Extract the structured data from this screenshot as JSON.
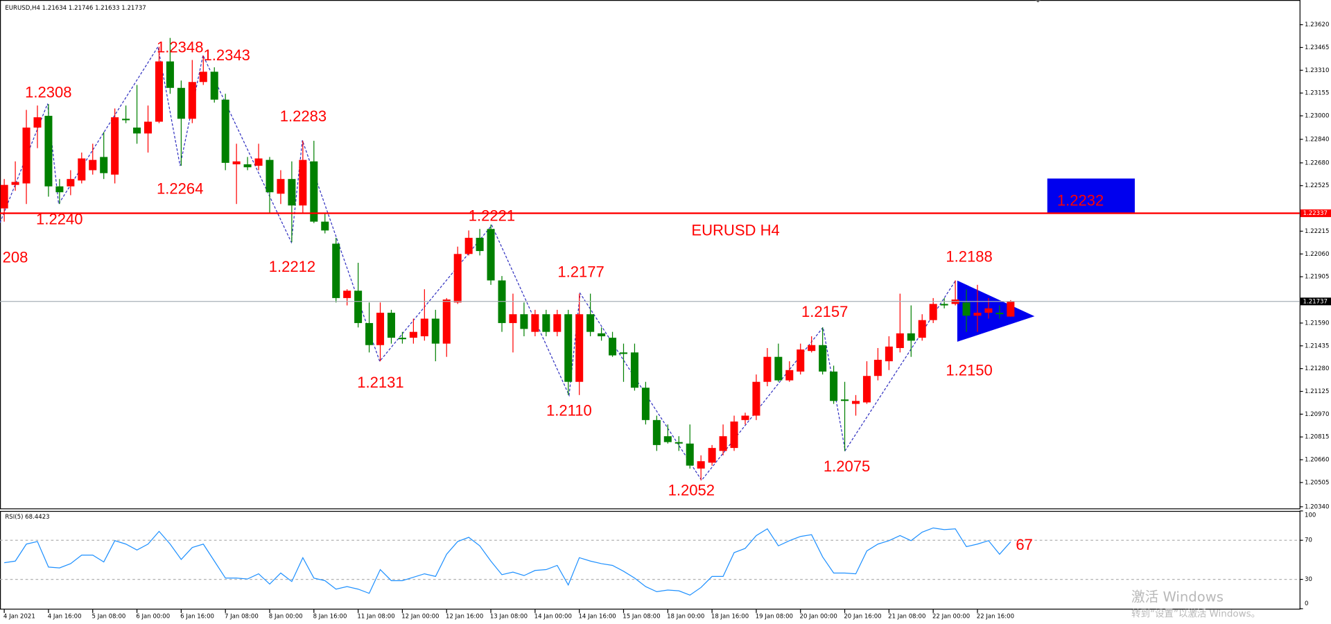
{
  "header": {
    "symbol": "EURUSD,H4",
    "open": 1.21634,
    "high": 1.21746,
    "low": 1.21633,
    "close": 1.21737
  },
  "watermark": {
    "line1": "激活 Windows",
    "line2": "转到“设置”以激活 Windows。"
  },
  "chart_data": [
    {
      "type": "candlestick",
      "up_color": "#ff0000",
      "down_color": "#008000",
      "grid": false,
      "ylim": [
        1.20329,
        1.23788
      ],
      "yticks": [
        {
          "value": 1.2362,
          "label": "1.23620"
        },
        {
          "value": 1.23465,
          "label": "1.23465"
        },
        {
          "value": 1.2331,
          "label": "1.23310"
        },
        {
          "value": 1.23155,
          "label": "1.23155"
        },
        {
          "value": 1.23,
          "label": "1.23000"
        },
        {
          "value": 1.2284,
          "label": "1.22840"
        },
        {
          "value": 1.2268,
          "label": "1.22680"
        },
        {
          "value": 1.22525,
          "label": "1.22525"
        },
        {
          "value": 1.22215,
          "label": "1.22215"
        },
        {
          "value": 1.2206,
          "label": "1.22060"
        },
        {
          "value": 1.21905,
          "label": "1.21905"
        },
        {
          "value": 1.2159,
          "label": "1.21590"
        },
        {
          "value": 1.21435,
          "label": "1.21435"
        },
        {
          "value": 1.2128,
          "label": "1.21280"
        },
        {
          "value": 1.21125,
          "label": "1.21125"
        },
        {
          "value": 1.2097,
          "label": "1.20970"
        },
        {
          "value": 1.20815,
          "label": "1.20815"
        },
        {
          "value": 1.2066,
          "label": "1.20660"
        },
        {
          "value": 1.20505,
          "label": "1.20505"
        },
        {
          "value": 1.2034,
          "label": "1.20340"
        }
      ],
      "hlines": [
        {
          "value": 1.22337,
          "color": "#ff0000",
          "label_color": "#ff0000"
        },
        {
          "value": 1.21737,
          "color": "#a8b0b8",
          "label_color": "#000000"
        }
      ],
      "annotations": [
        {
          "text": "1.2348"
        },
        {
          "text": "1.2343"
        },
        {
          "text": "1.2308"
        },
        {
          "text": "1.2283"
        },
        {
          "text": "1.2264"
        },
        {
          "text": "1.2240"
        },
        {
          "text": "208"
        },
        {
          "text": "1.2212"
        },
        {
          "text": "1.2221"
        },
        {
          "text": "1.2177"
        },
        {
          "text": "1.2131"
        },
        {
          "text": "1.2110"
        },
        {
          "text": "1.2157"
        },
        {
          "text": "1.2188"
        },
        {
          "text": "1.2150"
        },
        {
          "text": "1.2075"
        },
        {
          "text": "1.2052"
        },
        {
          "text": "EURUSD H4"
        },
        {
          "text": "1.2232"
        }
      ],
      "categories": [
        "4 Jan 2021",
        null,
        null,
        null,
        "4 Jan 16:00",
        null,
        null,
        null,
        "5 Jan 08:00",
        null,
        null,
        null,
        "6 Jan 00:00",
        null,
        null,
        null,
        "6 Jan 16:00",
        null,
        null,
        null,
        "7 Jan 08:00",
        null,
        null,
        null,
        "8 Jan 00:00",
        null,
        null,
        null,
        "8 Jan 16:00",
        null,
        null,
        null,
        "11 Jan 08:00",
        null,
        null,
        null,
        "12 Jan 00:00",
        null,
        null,
        null,
        "12 Jan 16:00",
        null,
        null,
        null,
        "13 Jan 08:00",
        null,
        null,
        null,
        "14 Jan 00:00",
        null,
        null,
        null,
        "14 Jan 16:00",
        null,
        null,
        null,
        "15 Jan 08:00",
        null,
        null,
        null,
        "18 Jan 00:00",
        null,
        null,
        null,
        "18 Jan 16:00",
        null,
        null,
        null,
        "19 Jan 08:00",
        null,
        null,
        null,
        "20 Jan 00:00",
        null,
        null,
        null,
        "20 Jan 16:00",
        null,
        null,
        null,
        "21 Jan 08:00",
        null,
        null,
        null,
        "22 Jan 00:00",
        null,
        null,
        null,
        "22 Jan 16:00",
        null,
        null,
        null
      ],
      "open": [
        1.2237,
        1.2253,
        1.2254,
        1.2292,
        1.23,
        1.2252,
        1.2252,
        1.2256,
        1.2263,
        1.2272,
        1.226,
        1.2298,
        1.2292,
        1.2288,
        1.2296,
        1.2337,
        1.2319,
        1.2298,
        1.2323,
        1.233,
        1.2311,
        1.2267,
        1.2267,
        1.2266,
        1.227,
        1.2247,
        1.2257,
        1.2239,
        1.2269,
        1.2228,
        1.2213,
        1.2176,
        1.2181,
        1.2159,
        1.2144,
        1.2166,
        1.2149,
        1.2149,
        1.215,
        1.2162,
        1.2145,
        1.2173,
        1.2206,
        1.2217,
        1.2223,
        1.2188,
        1.2159,
        1.2165,
        1.2153,
        1.2165,
        1.2153,
        1.2165,
        1.2119,
        1.2165,
        1.2152,
        1.2149,
        1.2139,
        1.2139,
        1.2115,
        1.2093,
        1.2082,
        1.2078,
        1.2077,
        1.206,
        1.2064,
        1.2072,
        1.2074,
        1.2093,
        1.2096,
        1.2119,
        1.2136,
        1.212,
        1.2126,
        1.214,
        1.2144,
        1.2126,
        1.2107,
        1.2104,
        1.2105,
        1.2123,
        1.2133,
        1.2142,
        1.2152,
        1.2149,
        1.2161,
        1.2172,
        1.2172,
        1.2173,
        1.2164,
        1.2166,
        1.2166,
        1.21634
      ],
      "high": [
        1.2257,
        1.2269,
        1.2304,
        1.2307,
        1.2308,
        1.2257,
        1.2263,
        1.2275,
        1.2281,
        1.2289,
        1.2305,
        1.2307,
        1.2321,
        1.2307,
        1.2347,
        1.2353,
        1.2324,
        1.2338,
        1.2341,
        1.2333,
        1.2315,
        1.2281,
        1.2272,
        1.2281,
        1.2272,
        1.2263,
        1.2269,
        1.2283,
        1.2283,
        1.2234,
        1.2217,
        1.2182,
        1.22,
        1.2173,
        1.2173,
        1.2168,
        1.2153,
        1.2162,
        1.2182,
        1.2168,
        1.2176,
        1.2211,
        1.2222,
        1.2223,
        1.2226,
        1.2191,
        1.2179,
        1.2173,
        1.2168,
        1.2168,
        1.2168,
        1.2168,
        1.2179,
        1.2179,
        1.2156,
        1.2153,
        1.2145,
        1.2145,
        1.2119,
        1.2096,
        1.209,
        1.2082,
        1.209,
        1.2069,
        1.2076,
        1.209,
        1.2096,
        1.2098,
        1.2124,
        1.2142,
        1.2145,
        1.2133,
        1.2145,
        1.215,
        1.2156,
        1.213,
        1.2119,
        1.211,
        1.2133,
        1.2142,
        1.215,
        1.2179,
        1.2171,
        1.2165,
        1.2176,
        1.2176,
        1.2188,
        1.2182,
        1.2185,
        1.2176,
        1.2171,
        1.21746
      ],
      "low": [
        1.2228,
        1.2249,
        1.224,
        1.2278,
        1.2245,
        1.224,
        1.2246,
        1.2254,
        1.226,
        1.2257,
        1.2254,
        1.2295,
        1.2281,
        1.2275,
        1.2295,
        1.2315,
        1.2266,
        1.2295,
        1.2321,
        1.2309,
        1.2263,
        1.224,
        1.2263,
        1.2263,
        1.2234,
        1.224,
        1.2214,
        1.2234,
        1.2227,
        1.222,
        1.2173,
        1.2171,
        1.2156,
        1.2139,
        1.2133,
        1.2145,
        1.2145,
        1.2145,
        1.2147,
        1.2133,
        1.2136,
        1.2172,
        1.2205,
        1.2205,
        1.2185,
        1.2153,
        1.2139,
        1.215,
        1.215,
        1.215,
        1.215,
        1.211,
        1.211,
        1.215,
        1.2147,
        1.2136,
        1.2119,
        1.2113,
        1.209,
        1.2072,
        1.2077,
        1.2072,
        1.206,
        1.2052,
        1.2062,
        1.2069,
        1.2072,
        1.209,
        1.2093,
        1.2116,
        1.2119,
        1.2119,
        1.2124,
        1.2139,
        1.2124,
        1.2104,
        1.2072,
        1.2096,
        1.2104,
        1.212,
        1.2127,
        1.2139,
        1.2136,
        1.2147,
        1.2159,
        1.2169,
        1.2171,
        1.2153,
        1.2153,
        1.2162,
        1.2162,
        1.21633
      ],
      "close": [
        1.2253,
        1.2255,
        1.2292,
        1.2299,
        1.2252,
        1.2248,
        1.2257,
        1.2271,
        1.227,
        1.2261,
        1.2299,
        1.2297,
        1.2288,
        1.2296,
        1.2337,
        1.2319,
        1.2298,
        1.2323,
        1.233,
        1.2311,
        1.2268,
        1.2269,
        1.2265,
        1.2271,
        1.2248,
        1.2257,
        1.2239,
        1.227,
        1.2228,
        1.2222,
        1.2176,
        1.2181,
        1.2159,
        1.2144,
        1.2166,
        1.2149,
        1.2148,
        1.2153,
        1.2162,
        1.2145,
        1.2175,
        1.2206,
        1.2217,
        1.2208,
        1.2188,
        1.2159,
        1.2165,
        1.2155,
        1.2165,
        1.2153,
        1.2165,
        1.2119,
        1.2165,
        1.2153,
        1.215,
        1.2137,
        1.2138,
        1.2115,
        1.2093,
        1.2076,
        1.2078,
        1.2077,
        1.2062,
        1.2065,
        1.2074,
        1.2082,
        1.2092,
        1.2096,
        1.2119,
        1.2136,
        1.212,
        1.2127,
        1.2141,
        1.2144,
        1.2126,
        1.2106,
        1.2106,
        1.2106,
        1.2123,
        1.2134,
        1.2143,
        1.2152,
        1.2147,
        1.2161,
        1.2172,
        1.2171,
        1.2175,
        1.2164,
        1.2166,
        1.2169,
        1.2165,
        1.21737
      ]
    },
    {
      "type": "line",
      "title": "RSI(5) 68.4423",
      "color": "#1e90ff",
      "grid": true,
      "ylim": [
        0,
        100
      ],
      "yticks": [
        100,
        70,
        30,
        0
      ],
      "annotations": [
        {
          "text": "67"
        }
      ],
      "values": [
        47.0,
        48.7,
        66.1,
        68.7,
        42.6,
        41.7,
        46.1,
        54.8,
        54.8,
        47.8,
        69.6,
        66.1,
        60.0,
        66.1,
        79.1,
        66.1,
        50.4,
        62.6,
        66.1,
        48.7,
        31.3,
        31.3,
        30.4,
        35.7,
        25.2,
        36.5,
        27.8,
        52.2,
        31.3,
        28.7,
        20.0,
        22.6,
        20.0,
        15.7,
        40.0,
        28.7,
        28.7,
        32.2,
        35.7,
        33.0,
        55.7,
        68.7,
        73.0,
        64.3,
        48.7,
        34.8,
        37.4,
        33.9,
        39.1,
        40.0,
        44.3,
        24.3,
        52.2,
        48.7,
        46.1,
        44.3,
        38.3,
        31.3,
        22.6,
        17.4,
        19.1,
        18.3,
        13.9,
        21.7,
        33.0,
        33.0,
        57.4,
        61.7,
        74.8,
        81.7,
        64.3,
        69.6,
        73.9,
        75.7,
        53.0,
        36.5,
        36.5,
        35.7,
        59.1,
        66.1,
        69.6,
        74.8,
        69.6,
        78.3,
        82.6,
        80.9,
        81.7,
        63.5,
        66.1,
        69.6,
        55.7,
        68.4423
      ]
    }
  ]
}
